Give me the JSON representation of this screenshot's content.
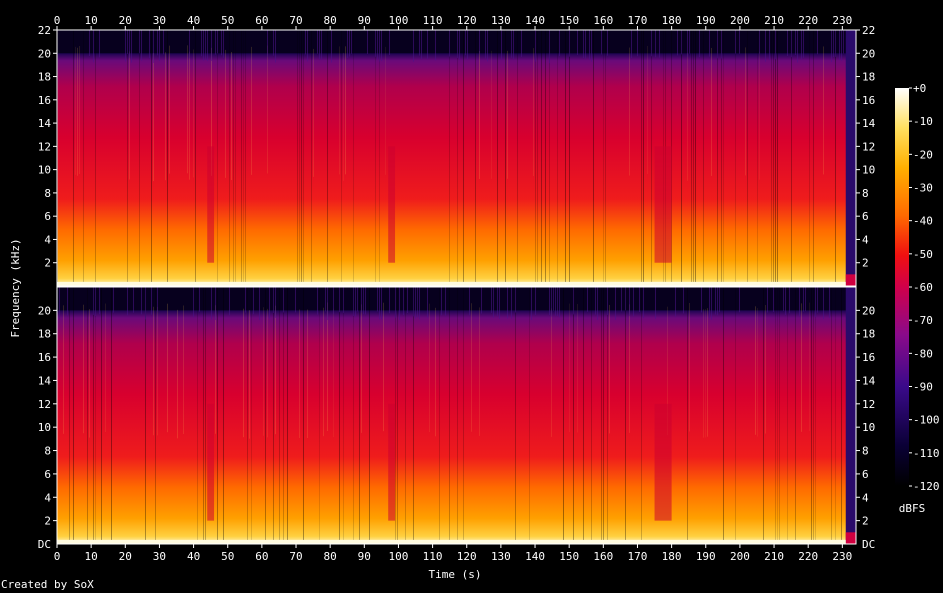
{
  "chart_data": {
    "type": "heatmap",
    "title": "",
    "xlabel": "Time (s)",
    "ylabel": "Frequency (kHz)",
    "colorbar_label": "dBFS",
    "x_ticks": [
      0,
      10,
      20,
      30,
      40,
      50,
      60,
      70,
      80,
      90,
      100,
      110,
      120,
      130,
      140,
      150,
      160,
      170,
      180,
      190,
      200,
      210,
      220,
      230
    ],
    "xlim": [
      0,
      234
    ],
    "ylim": [
      0,
      22
    ],
    "channels": [
      {
        "y_ticks": [
          "2",
          "4",
          "6",
          "8",
          "10",
          "12",
          "14",
          "16",
          "18",
          "20",
          "22"
        ],
        "bottom_label": ""
      },
      {
        "y_ticks": [
          "2",
          "4",
          "6",
          "8",
          "10",
          "12",
          "14",
          "16",
          "18",
          "20"
        ],
        "bottom_label": "DC"
      }
    ],
    "colorbar_ticks": [
      "+0",
      "-10",
      "-20",
      "-30",
      "-40",
      "-50",
      "-60",
      "-70",
      "-80",
      "-90",
      "-100",
      "-110",
      "-120"
    ],
    "colorbar_range": [
      -120,
      0
    ],
    "frequency_cutoff_khz": 20,
    "quiet_segments_s": [
      [
        44,
        46
      ],
      [
        97,
        99
      ],
      [
        175,
        180
      ]
    ],
    "end_of_audio_s": 231,
    "colors": {
      "background": "#000000",
      "axis": "#ffffff",
      "low": "#0a0030",
      "mid": "#e8001c",
      "high": "#ffffc0"
    }
  },
  "credit": "Created by SoX"
}
